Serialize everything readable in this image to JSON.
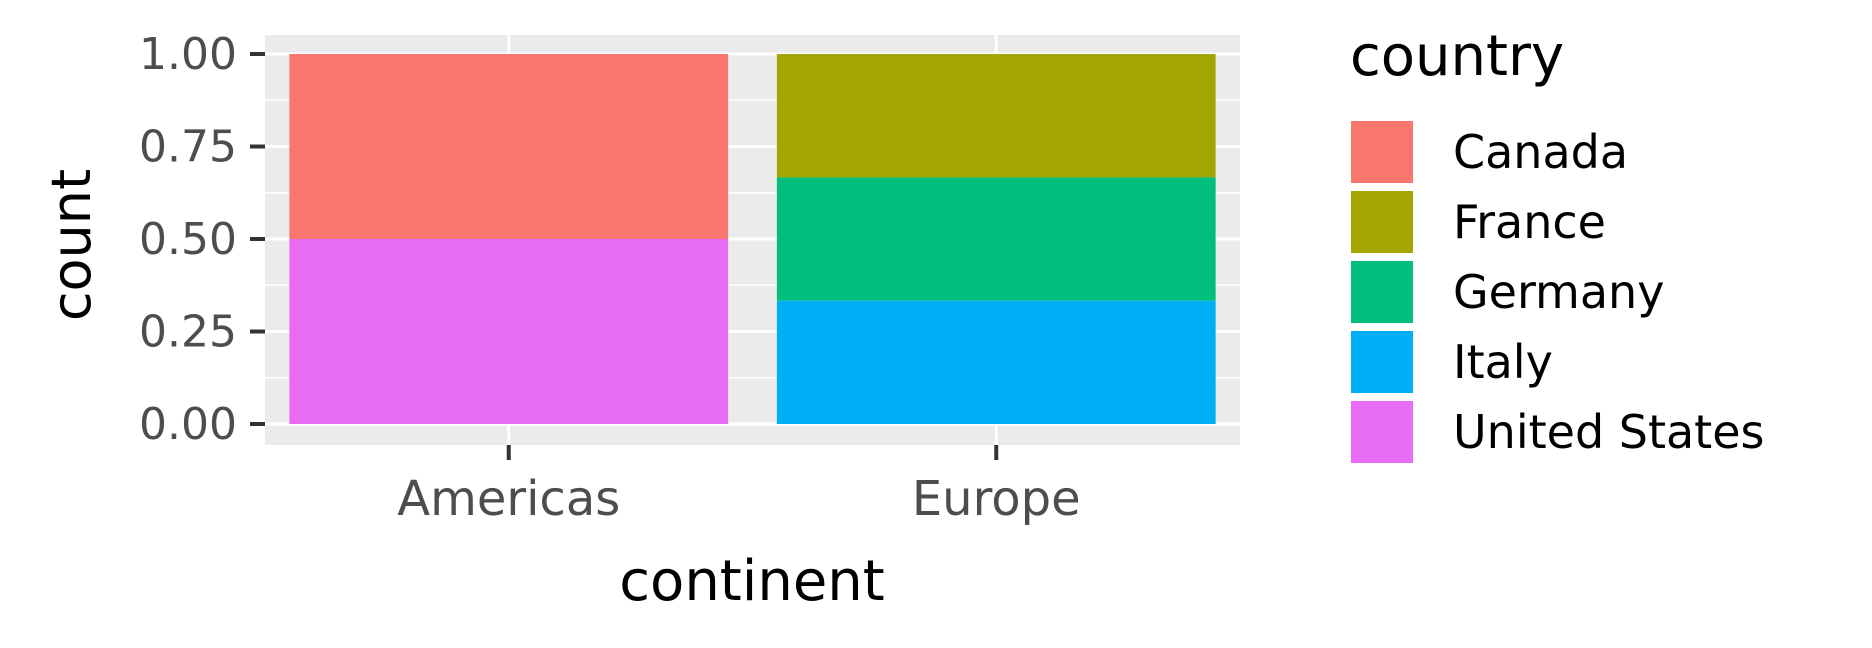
{
  "chart_data": {
    "type": "bar",
    "stacked": true,
    "categories": [
      "Americas",
      "Europe"
    ],
    "series": [
      {
        "name": "Canada",
        "color": "#F8766D",
        "values": [
          0.5,
          0
        ]
      },
      {
        "name": "France",
        "color": "#A3A500",
        "values": [
          0,
          0.3333
        ]
      },
      {
        "name": "Germany",
        "color": "#00BF7D",
        "values": [
          0,
          0.3333
        ]
      },
      {
        "name": "Italy",
        "color": "#00B0F6",
        "values": [
          0,
          0.3333
        ]
      },
      {
        "name": "United States",
        "color": "#E76BF3",
        "values": [
          0.5,
          0
        ]
      }
    ],
    "xlabel": "continent",
    "ylabel": "count",
    "ylim": [
      0,
      1
    ],
    "yticks": [
      "0.00",
      "0.25",
      "0.50",
      "0.75",
      "1.00"
    ],
    "grid": true,
    "legend": {
      "title": "country",
      "placement": "right"
    }
  }
}
